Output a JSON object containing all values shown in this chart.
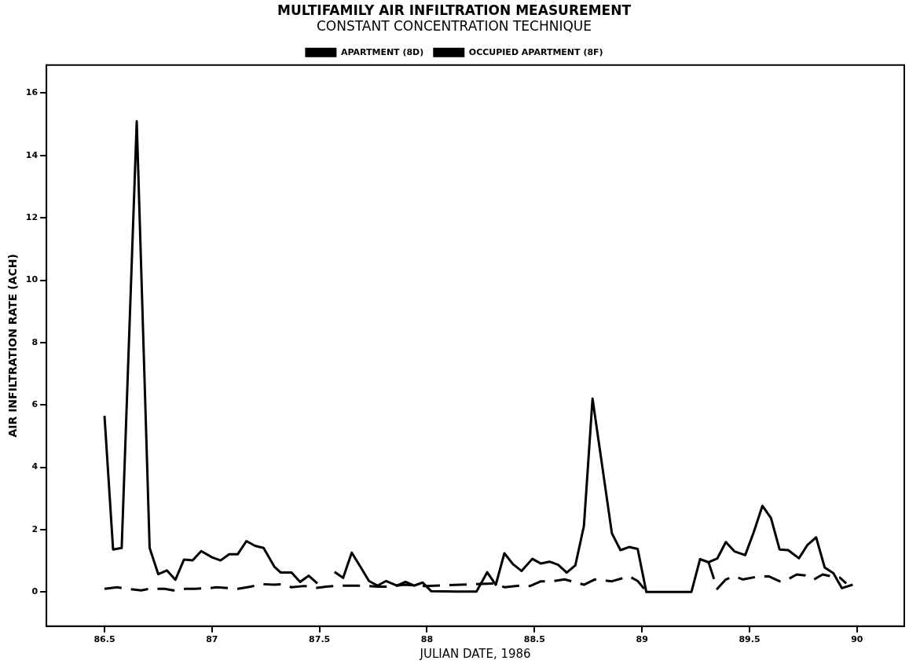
{
  "chart_data": {
    "type": "line",
    "title": "MULTIFAMILY AIR INFILTRATION MEASUREMENT",
    "subtitle": "CONSTANT CONCENTRATION TECHNIQUE",
    "xlabel": "JULIAN DATE, 1986",
    "ylabel": "AIR INFILTRATION RATE (ACH)",
    "xlim": [
      86.23,
      90.22
    ],
    "xticks": [
      86.5,
      87,
      87.5,
      88,
      88.5,
      89,
      89.5,
      90
    ],
    "ylim": [
      -1.1,
      16.9
    ],
    "yticks": [
      0,
      2,
      4,
      6,
      8,
      10,
      12,
      14,
      16
    ],
    "grid": false,
    "legend": "top",
    "marker": "none",
    "series": [
      {
        "name": "APARTMENT (8D)",
        "color": "#000000",
        "line_style": "dashed",
        "x": [
          86.5,
          86.56,
          86.6,
          86.67,
          86.71,
          86.78,
          86.82,
          86.88,
          86.92,
          86.99,
          87.02,
          87.09,
          87.12,
          87.18,
          87.23,
          87.29,
          87.33,
          87.37,
          87.43,
          87.49,
          87.53,
          87.6,
          87.64,
          87.69,
          87.77,
          87.81,
          87.9,
          87.99,
          88.32,
          88.36,
          88.43,
          88.48,
          88.53,
          88.58,
          88.64,
          88.68,
          88.73,
          88.78,
          88.86,
          88.94,
          88.98,
          89.01,
          89.2,
          89.31,
          89.35,
          89.39,
          89.43,
          89.47,
          89.53,
          89.59,
          89.64,
          89.67,
          89.72,
          89.76,
          89.8,
          89.84,
          89.88,
          89.92,
          89.95
        ],
        "values": [
          0.1,
          0.15,
          0.1,
          0.05,
          0.1,
          0.1,
          0.05,
          0.1,
          0.1,
          0.12,
          0.15,
          0.12,
          0.1,
          0.17,
          0.25,
          0.23,
          0.25,
          0.15,
          0.19,
          0.13,
          0.17,
          0.2,
          0.2,
          0.2,
          0.17,
          0.17,
          0.23,
          0.19,
          0.27,
          0.15,
          0.2,
          0.19,
          0.34,
          0.34,
          0.4,
          0.33,
          0.23,
          0.4,
          0.34,
          0.5,
          0.35,
          0.1,
          null,
          0.94,
          0.1,
          0.4,
          0.5,
          0.4,
          0.48,
          0.5,
          0.34,
          0.37,
          0.56,
          0.53,
          0.4,
          0.56,
          0.5,
          0.46,
          0.27
        ]
      },
      {
        "name": "OCCUPIED APARTMENT (8F)",
        "color": "#000000",
        "line_style": "solid",
        "x": [
          86.5,
          86.54,
          86.58,
          86.65,
          86.71,
          86.75,
          86.79,
          86.83,
          86.87,
          86.91,
          86.95,
          87.0,
          87.04,
          87.08,
          87.12,
          87.16,
          87.2,
          87.24,
          87.29,
          87.32,
          87.37,
          87.41,
          87.45,
          87.49,
          87.53,
          87.57,
          87.61,
          87.65,
          87.69,
          87.73,
          87.77,
          87.81,
          87.86,
          87.9,
          87.94,
          87.98,
          88.02,
          88.14,
          88.23,
          88.28,
          88.32,
          88.36,
          88.4,
          88.44,
          88.49,
          88.53,
          88.57,
          88.61,
          88.65,
          88.69,
          88.73,
          88.77,
          88.86,
          88.9,
          88.94,
          88.98,
          89.02,
          89.1,
          89.23,
          89.27,
          89.31,
          89.35,
          89.39,
          89.43,
          89.48,
          89.52,
          89.56,
          89.6,
          89.64,
          89.68,
          89.73,
          89.77,
          89.81,
          89.85,
          89.89,
          89.93,
          89.98
        ],
        "values": [
          5.65,
          1.36,
          1.41,
          15.1,
          1.41,
          0.57,
          0.69,
          0.39,
          1.04,
          1.01,
          1.31,
          1.11,
          1.01,
          1.21,
          1.21,
          1.63,
          1.48,
          1.41,
          0.81,
          0.62,
          0.62,
          0.32,
          0.52,
          0.27,
          null,
          0.64,
          0.45,
          1.26,
          0.81,
          0.35,
          0.2,
          0.35,
          0.2,
          0.32,
          0.2,
          0.3,
          0.02,
          0.01,
          0.01,
          0.63,
          0.23,
          1.24,
          0.89,
          0.67,
          1.06,
          0.91,
          0.97,
          0.87,
          0.62,
          0.85,
          2.12,
          6.2,
          1.88,
          1.34,
          1.44,
          1.38,
          0,
          0,
          0,
          1.05,
          0.95,
          1.07,
          1.6,
          1.3,
          1.18,
          1.92,
          2.76,
          2.37,
          1.36,
          1.34,
          1.08,
          1.51,
          1.75,
          0.78,
          0.6,
          0.12,
          0.23
        ]
      }
    ]
  }
}
